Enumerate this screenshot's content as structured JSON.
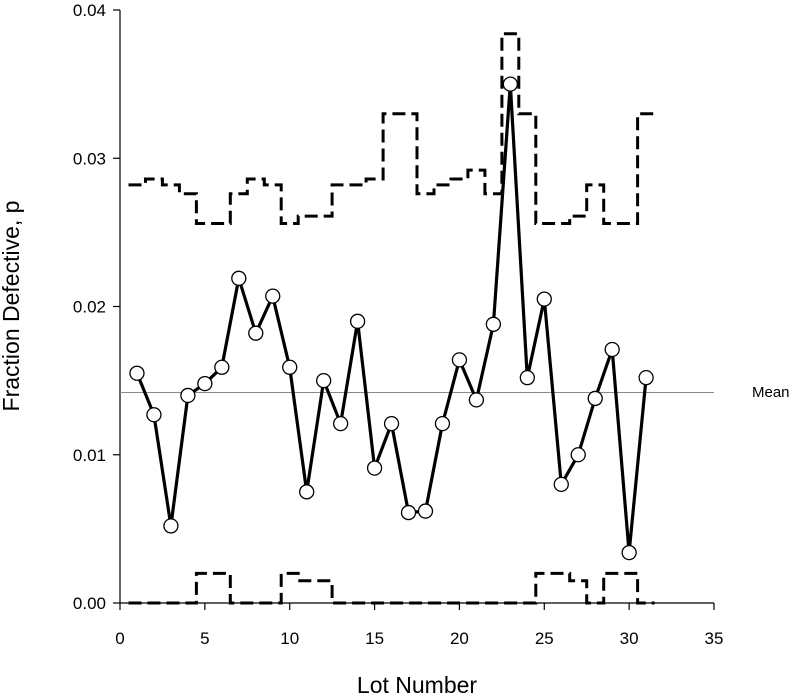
{
  "chart_data": {
    "type": "line",
    "xlabel": "Lot Number",
    "ylabel": "Fraction Defective, p",
    "xlim": [
      0,
      35
    ],
    "ylim": [
      0,
      0.04
    ],
    "x_ticks": [
      0,
      5,
      10,
      15,
      20,
      25,
      30,
      35
    ],
    "x_tick_labels": [
      "0",
      "5",
      "10",
      "15",
      "20",
      "25",
      "30",
      "35"
    ],
    "y_ticks": [
      0,
      0.01,
      0.02,
      0.03,
      0.04
    ],
    "y_tick_labels": [
      "0.00",
      "0.01",
      "0.02",
      "0.03",
      "0.04"
    ],
    "grid": false,
    "mean": {
      "label": "Mean",
      "value": 0.0142
    },
    "series": [
      {
        "style": "solid line with open circle markers",
        "color": "#000000",
        "x": [
          1,
          2,
          3,
          4,
          5,
          6,
          7,
          8,
          9,
          10,
          11,
          12,
          13,
          14,
          15,
          16,
          17,
          18,
          19,
          20,
          21,
          22,
          23,
          24,
          25,
          26,
          27,
          28,
          29,
          30,
          31
        ],
        "values": [
          0.0155,
          0.0127,
          0.0052,
          0.014,
          0.0148,
          0.0159,
          0.0219,
          0.0182,
          0.0207,
          0.0159,
          0.0075,
          0.015,
          0.0121,
          0.019,
          0.0091,
          0.0121,
          0.0061,
          0.0062,
          0.0121,
          0.0164,
          0.0137,
          0.0188,
          0.035,
          0.0152,
          0.0205,
          0.008,
          0.01,
          0.0138,
          0.0171,
          0.0034,
          0.0152
        ]
      },
      {
        "style": "dashed step (upper control limit)",
        "color": "#000000",
        "x": [
          1,
          2,
          3,
          4,
          5,
          6,
          7,
          8,
          9,
          10,
          11,
          12,
          13,
          14,
          15,
          16,
          17,
          18,
          19,
          20,
          21,
          22,
          23,
          24,
          25,
          26,
          27,
          28,
          29,
          30,
          31
        ],
        "values": [
          0.0282,
          0.0286,
          0.0282,
          0.0276,
          0.0256,
          0.0256,
          0.0276,
          0.0286,
          0.0282,
          0.0256,
          0.0261,
          0.0261,
          0.0282,
          0.0282,
          0.0286,
          0.033,
          0.033,
          0.0276,
          0.0282,
          0.0286,
          0.0292,
          0.0276,
          0.0384,
          0.033,
          0.0256,
          0.0256,
          0.0261,
          0.0282,
          0.0256,
          0.0256,
          0.033
        ]
      },
      {
        "style": "dashed step (lower control limit)",
        "color": "#000000",
        "x": [
          1,
          2,
          3,
          4,
          5,
          6,
          7,
          8,
          9,
          10,
          11,
          12,
          13,
          14,
          15,
          16,
          17,
          18,
          19,
          20,
          21,
          22,
          23,
          24,
          25,
          26,
          27,
          28,
          29,
          30,
          31
        ],
        "values": [
          0,
          0,
          0,
          0,
          0.002,
          0.002,
          0,
          0,
          0,
          0.002,
          0.0015,
          0.0015,
          0,
          0,
          0,
          0,
          0,
          0,
          0,
          0,
          0,
          0,
          0,
          0,
          0.002,
          0.002,
          0.0015,
          0,
          0.002,
          0.002,
          0
        ]
      }
    ]
  }
}
